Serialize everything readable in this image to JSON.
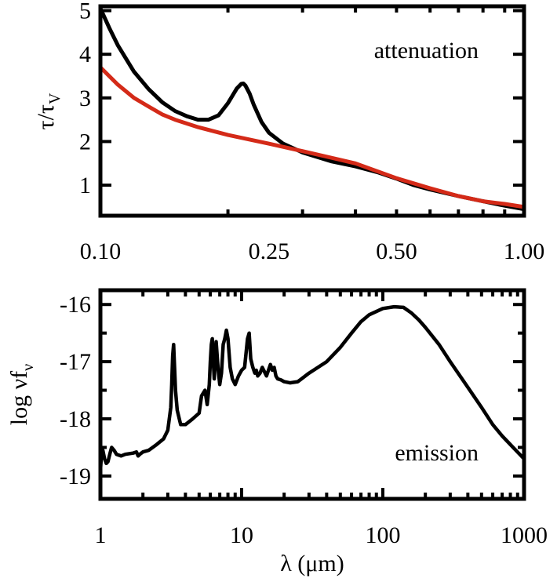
{
  "chart_data": [
    {
      "type": "line",
      "annotation": "attenuation",
      "ylabel_main": "τ/τ",
      "ylabel_sub": "V",
      "xscale": "log",
      "xlim": [
        0.1,
        1.0
      ],
      "ylim": [
        0.3,
        5.1
      ],
      "xticks": [
        {
          "value": 0.1,
          "label": "0.10"
        },
        {
          "value": 0.25,
          "label": "0.25"
        },
        {
          "value": 0.5,
          "label": "0.50"
        },
        {
          "value": 1.0,
          "label": "1.00"
        }
      ],
      "yticks": [
        {
          "value": 1,
          "label": "1"
        },
        {
          "value": 2,
          "label": "2"
        },
        {
          "value": 3,
          "label": "3"
        },
        {
          "value": 4,
          "label": "4"
        },
        {
          "value": 5,
          "label": "5"
        }
      ],
      "series": [
        {
          "color": "#000000",
          "x": [
            0.1,
            0.105,
            0.11,
            0.12,
            0.13,
            0.14,
            0.15,
            0.16,
            0.17,
            0.18,
            0.19,
            0.2,
            0.205,
            0.21,
            0.215,
            0.2175,
            0.22,
            0.225,
            0.23,
            0.24,
            0.25,
            0.27,
            0.3,
            0.35,
            0.4,
            0.45,
            0.5,
            0.55,
            0.6,
            0.7,
            0.8,
            0.9,
            1.0
          ],
          "y": [
            5.05,
            4.6,
            4.2,
            3.6,
            3.2,
            2.9,
            2.7,
            2.58,
            2.5,
            2.5,
            2.6,
            2.88,
            3.05,
            3.22,
            3.32,
            3.33,
            3.28,
            3.1,
            2.85,
            2.45,
            2.2,
            1.95,
            1.75,
            1.55,
            1.43,
            1.3,
            1.15,
            1.0,
            0.9,
            0.75,
            0.63,
            0.53,
            0.45
          ]
        },
        {
          "color": "#d42a18",
          "x": [
            0.1,
            0.11,
            0.12,
            0.13,
            0.14,
            0.15,
            0.17,
            0.2,
            0.25,
            0.3,
            0.35,
            0.4,
            0.5,
            0.6,
            0.7,
            0.8,
            0.9,
            1.0
          ],
          "y": [
            3.7,
            3.3,
            3.0,
            2.8,
            2.62,
            2.5,
            2.33,
            2.15,
            1.95,
            1.78,
            1.63,
            1.5,
            1.16,
            0.93,
            0.75,
            0.63,
            0.57,
            0.5
          ]
        }
      ]
    },
    {
      "type": "line",
      "annotation": "emission",
      "ylabel_main": "log νf",
      "ylabel_sub": "ν",
      "xlabel": "λ (μm)",
      "xscale": "log",
      "xlim": [
        1,
        1000
      ],
      "ylim": [
        -19.4,
        -15.75
      ],
      "xticks": [
        {
          "value": 1,
          "label": "1"
        },
        {
          "value": 10,
          "label": "10"
        },
        {
          "value": 100,
          "label": "100"
        },
        {
          "value": 1000,
          "label": "1000"
        }
      ],
      "yticks": [
        {
          "value": -19,
          "label": "-19"
        },
        {
          "value": -18,
          "label": "-18"
        },
        {
          "value": -17,
          "label": "-17"
        },
        {
          "value": -16,
          "label": "-16"
        }
      ],
      "series": [
        {
          "color": "#000000",
          "x": [
            1.0,
            1.02,
            1.04,
            1.07,
            1.1,
            1.13,
            1.17,
            1.2,
            1.25,
            1.3,
            1.4,
            1.5,
            1.7,
            1.8,
            1.85,
            1.9,
            2.0,
            2.2,
            2.5,
            2.8,
            3.0,
            3.15,
            3.2,
            3.25,
            3.3,
            3.35,
            3.4,
            3.5,
            3.7,
            4.0,
            4.5,
            5.0,
            5.2,
            5.5,
            5.7,
            5.9,
            6.0,
            6.1,
            6.2,
            6.3,
            6.4,
            6.5,
            6.6,
            6.8,
            7.0,
            7.2,
            7.4,
            7.6,
            7.8,
            8.0,
            8.3,
            8.6,
            9.0,
            9.5,
            10.0,
            10.5,
            11.0,
            11.3,
            11.6,
            12.0,
            12.4,
            12.7,
            13.0,
            13.5,
            14.0,
            15.0,
            16.0,
            16.5,
            17.0,
            17.5,
            18.0,
            19.0,
            20.0,
            22.0,
            25.0,
            30.0,
            40.0,
            50.0,
            60.0,
            70.0,
            80.0,
            100.0,
            120.0,
            140.0,
            160.0,
            180.0,
            200.0,
            250.0,
            300.0,
            400.0,
            500.0,
            600.0,
            700.0,
            800.0,
            1000.0
          ],
          "y": [
            -18.9,
            -18.6,
            -18.55,
            -18.7,
            -18.78,
            -18.75,
            -18.6,
            -18.5,
            -18.55,
            -18.62,
            -18.65,
            -18.62,
            -18.6,
            -18.58,
            -18.65,
            -18.62,
            -18.58,
            -18.55,
            -18.45,
            -18.35,
            -18.2,
            -17.8,
            -17.4,
            -16.9,
            -16.7,
            -17.1,
            -17.5,
            -17.85,
            -18.1,
            -18.1,
            -18.0,
            -17.9,
            -17.6,
            -17.5,
            -17.75,
            -17.4,
            -17.0,
            -16.7,
            -16.6,
            -17.0,
            -17.3,
            -17.0,
            -16.65,
            -17.1,
            -17.4,
            -17.2,
            -16.7,
            -16.6,
            -16.45,
            -16.6,
            -17.1,
            -17.3,
            -17.4,
            -17.25,
            -17.15,
            -17.1,
            -16.6,
            -16.5,
            -16.95,
            -17.1,
            -17.2,
            -17.15,
            -17.25,
            -17.2,
            -17.1,
            -17.25,
            -17.05,
            -17.15,
            -17.1,
            -17.25,
            -17.3,
            -17.32,
            -17.35,
            -17.37,
            -17.35,
            -17.2,
            -17.0,
            -16.75,
            -16.5,
            -16.3,
            -16.18,
            -16.07,
            -16.04,
            -16.05,
            -16.15,
            -16.27,
            -16.4,
            -16.7,
            -17.0,
            -17.45,
            -17.8,
            -18.1,
            -18.3,
            -18.45,
            -18.7
          ]
        }
      ]
    }
  ]
}
